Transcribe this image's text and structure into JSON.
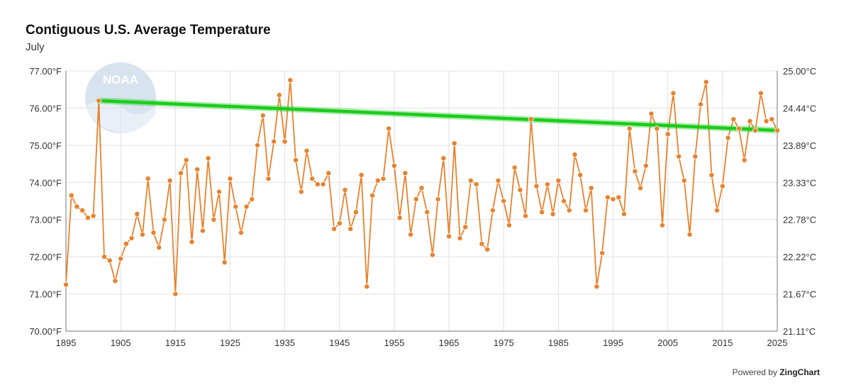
{
  "title": "Contiguous U.S. Average Temperature",
  "subtitle": "July",
  "logo_text": "NOAA",
  "credit": {
    "prefix": "Powered by",
    "brand": "ZingChart"
  },
  "colors": {
    "series": "#e8822d",
    "trend": "#1ccc1c",
    "grid": "#e0e0e0",
    "axis": "#777777"
  },
  "chart_data": {
    "type": "line",
    "title": "Contiguous U.S. Average Temperature",
    "subtitle": "July",
    "xlim": [
      1895,
      2025
    ],
    "ylim": [
      70,
      77
    ],
    "x_ticks": [
      "1895",
      "1905",
      "1915",
      "1925",
      "1935",
      "1945",
      "1955",
      "1965",
      "1975",
      "1985",
      "1995",
      "2005",
      "2015",
      "2025"
    ],
    "y_ticks_left": [
      "70.00°F",
      "71.00°F",
      "72.00°F",
      "73.00°F",
      "74.00°F",
      "75.00°F",
      "76.00°F",
      "77.00°F"
    ],
    "y_ticks_right": [
      "21.11°C",
      "21.67°C",
      "22.22°C",
      "22.78°C",
      "23.33°C",
      "23.89°C",
      "24.44°C",
      "25.00°C"
    ],
    "grid": true,
    "series": [
      {
        "x": [
          1895,
          1896,
          1897,
          1898,
          1899,
          1900,
          1901,
          1902,
          1903,
          1904,
          1905,
          1906,
          1907,
          1908,
          1909,
          1910,
          1911,
          1912,
          1913,
          1914,
          1915,
          1916,
          1917,
          1918,
          1919,
          1920,
          1921,
          1922,
          1923,
          1924,
          1925,
          1926,
          1927,
          1928,
          1929,
          1930,
          1931,
          1932,
          1933,
          1934,
          1935,
          1936,
          1937,
          1938,
          1939,
          1940,
          1941,
          1942,
          1943,
          1944,
          1945,
          1946,
          1947,
          1948,
          1949,
          1950,
          1951,
          1952,
          1953,
          1954,
          1955,
          1956,
          1957,
          1958,
          1959,
          1960,
          1961,
          1962,
          1963,
          1964,
          1965,
          1966,
          1967,
          1968,
          1969,
          1970,
          1971,
          1972,
          1973,
          1974,
          1975,
          1976,
          1977,
          1978,
          1979,
          1980,
          1981,
          1982,
          1983,
          1984,
          1985,
          1986,
          1987,
          1988,
          1989,
          1990,
          1991,
          1992,
          1993,
          1994,
          1995,
          1996,
          1997,
          1998,
          1999,
          2000,
          2001,
          2002,
          2003,
          2004,
          2005,
          2006,
          2007,
          2008,
          2009,
          2010,
          2011,
          2012,
          2013,
          2014,
          2015,
          2016,
          2017,
          2018,
          2019,
          2020,
          2021,
          2022,
          2023,
          2024,
          2025
        ],
        "values": [
          71.25,
          73.65,
          73.35,
          73.25,
          73.05,
          73.1,
          76.2,
          72.0,
          71.9,
          71.35,
          71.95,
          72.35,
          72.5,
          73.15,
          72.6,
          74.1,
          72.65,
          72.25,
          73.0,
          74.05,
          71.0,
          74.25,
          74.6,
          72.4,
          74.35,
          72.7,
          74.65,
          73.0,
          73.75,
          71.85,
          74.1,
          73.35,
          72.65,
          73.35,
          73.55,
          75.0,
          75.8,
          74.1,
          75.1,
          76.35,
          75.1,
          76.75,
          74.6,
          73.75,
          74.85,
          74.1,
          73.95,
          73.95,
          74.25,
          72.75,
          72.9,
          73.8,
          72.75,
          73.2,
          74.2,
          71.2,
          73.65,
          74.05,
          74.1,
          75.45,
          74.45,
          73.05,
          74.25,
          72.6,
          73.55,
          73.85,
          73.2,
          72.05,
          73.55,
          74.65,
          72.55,
          75.05,
          72.5,
          72.8,
          74.05,
          73.95,
          72.35,
          72.2,
          73.25,
          74.05,
          73.5,
          72.85,
          74.4,
          73.8,
          73.1,
          75.7,
          73.9,
          73.2,
          73.95,
          73.15,
          74.05,
          73.5,
          73.25,
          74.75,
          74.2,
          73.25,
          73.85,
          71.2,
          72.1,
          73.6,
          73.55,
          73.6,
          73.15,
          75.45,
          74.3,
          73.85,
          74.45,
          75.85,
          75.45,
          72.85,
          75.3,
          76.4,
          74.7,
          74.05,
          72.6,
          74.7,
          76.1,
          76.7,
          74.2,
          73.25,
          73.9,
          75.2,
          75.7,
          75.45,
          74.6,
          75.65,
          75.4,
          76.4,
          75.65,
          75.7,
          75.4
        ]
      },
      {
        "x": [
          1901,
          2025
        ],
        "values": [
          76.2,
          75.4
        ]
      }
    ]
  }
}
